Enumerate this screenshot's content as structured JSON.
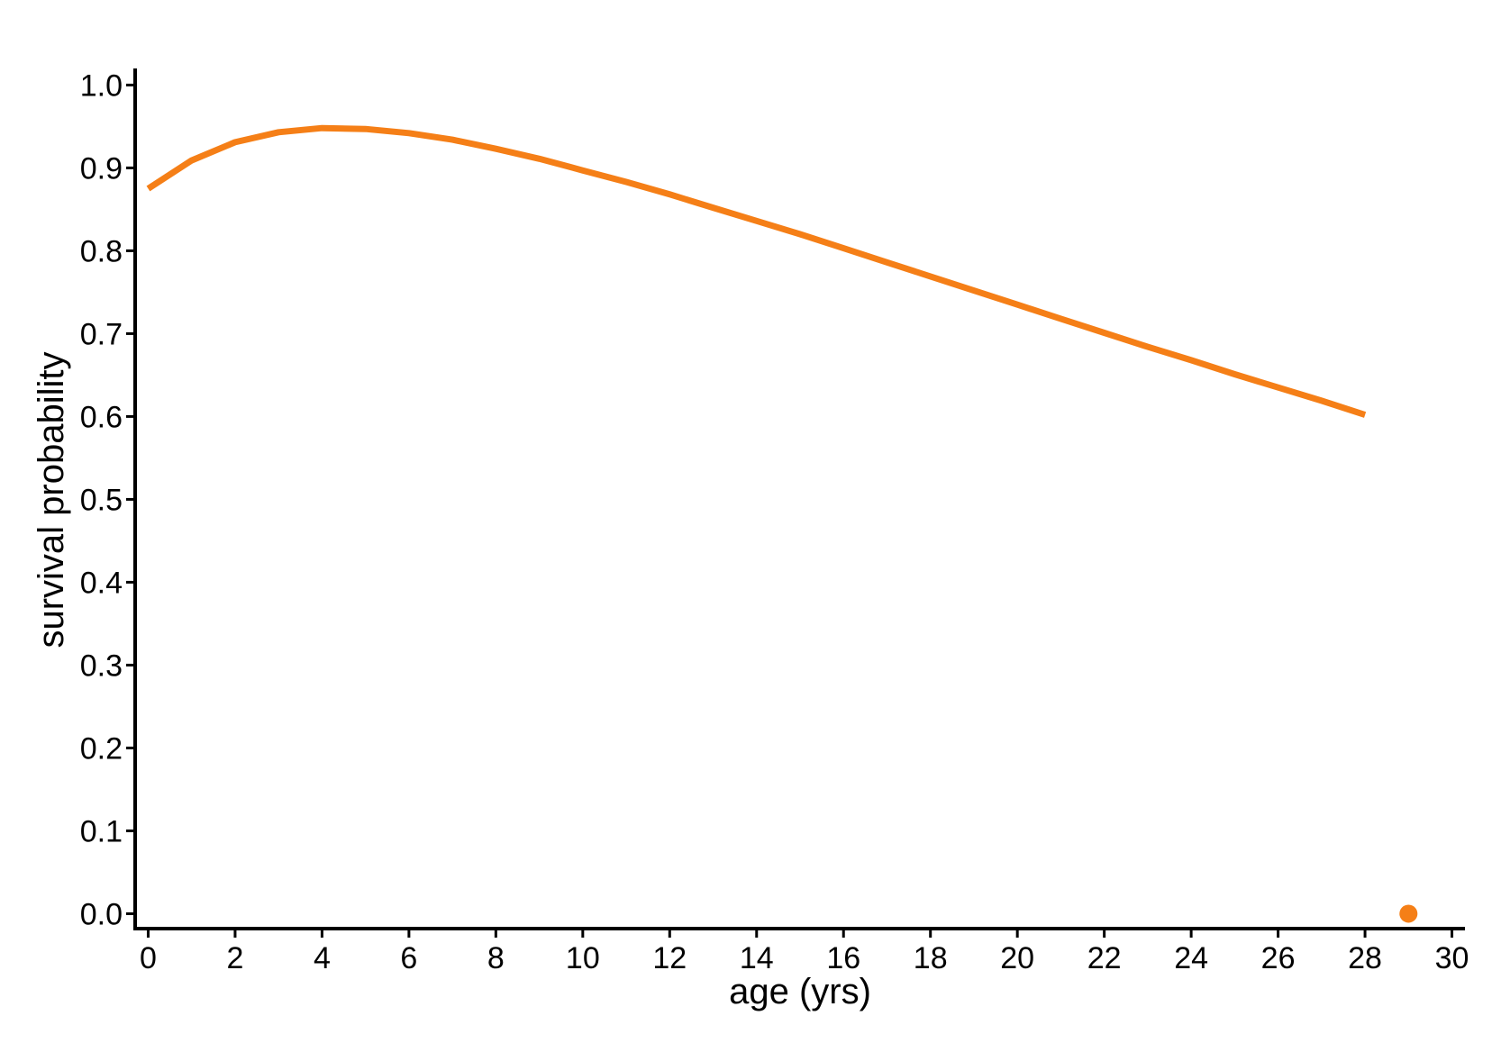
{
  "chart_data": {
    "type": "line",
    "xlabel": "age (yrs)",
    "ylabel": "survival probability",
    "xlim": [
      -0.3,
      30.3
    ],
    "ylim": [
      -0.018,
      1.02
    ],
    "xticks": [
      0,
      2,
      4,
      6,
      8,
      10,
      12,
      14,
      16,
      18,
      20,
      22,
      24,
      26,
      28,
      30
    ],
    "xtick_labels": [
      "0",
      "2",
      "4",
      "6",
      "8",
      "10",
      "12",
      "14",
      "16",
      "18",
      "20",
      "22",
      "24",
      "26",
      "28",
      "30"
    ],
    "yticks": [
      0,
      0.1,
      0.2,
      0.3,
      0.4,
      0.5,
      0.6,
      0.7,
      0.8,
      0.9,
      1.0
    ],
    "ytick_labels": [
      "0.0",
      "0.1",
      "0.2",
      "0.3",
      "0.4",
      "0.5",
      "0.6",
      "0.7",
      "0.8",
      "0.9",
      "1.0"
    ],
    "grid": false,
    "legend": false,
    "color": "#F57F17",
    "series": [
      {
        "style": "line",
        "x": [
          0,
          1,
          2,
          3,
          4,
          5,
          6,
          7,
          8,
          9,
          10,
          11,
          12,
          13,
          14,
          15,
          16,
          17,
          18,
          19,
          20,
          21,
          22,
          23,
          24,
          25,
          26,
          27,
          28
        ],
        "y": [
          0.875,
          0.909,
          0.931,
          0.943,
          0.948,
          0.947,
          0.942,
          0.934,
          0.923,
          0.911,
          0.897,
          0.883,
          0.868,
          0.852,
          0.836,
          0.82,
          0.803,
          0.786,
          0.769,
          0.752,
          0.735,
          0.718,
          0.701,
          0.684,
          0.668,
          0.651,
          0.635,
          0.619,
          0.602
        ]
      },
      {
        "style": "point",
        "x": [
          29
        ],
        "y": [
          0.0
        ]
      }
    ]
  }
}
